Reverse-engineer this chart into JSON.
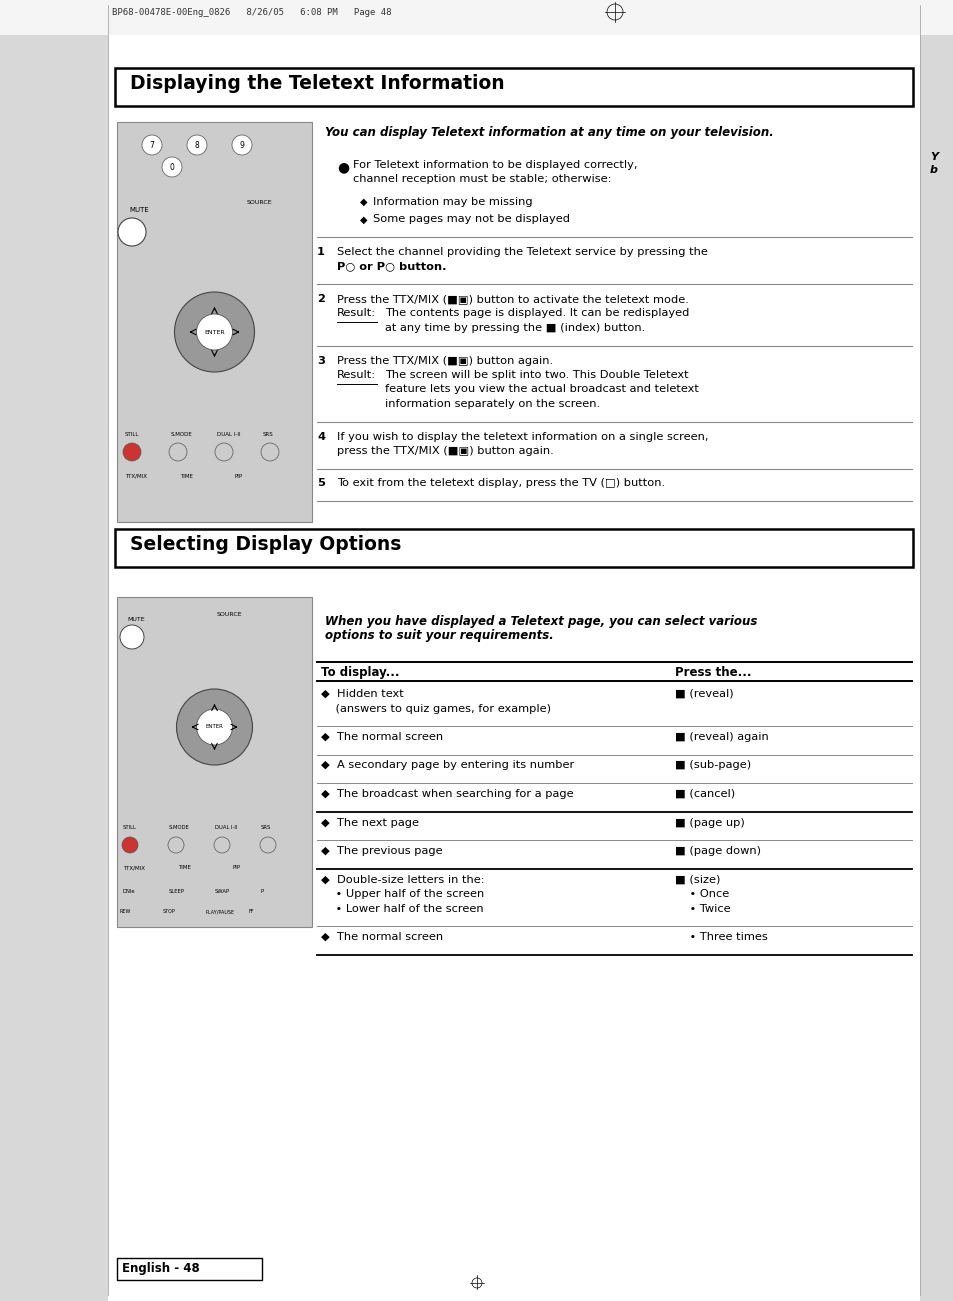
{
  "bg_color": "#ffffff",
  "header_text": "BP68-00478E-00Eng_0826   8/26/05   6:08 PM   Page 48",
  "section1_title": "Displaying the Teletext Information",
  "section2_title": "Selecting Display Options",
  "footer_text": "English - 48",
  "italic_intro1": "You can display Teletext information at any time on your television.",
  "note_line1": "For Teletext information to be displayed correctly,",
  "note_line2": "channel reception must be stable; otherwise:",
  "bullet1": "Information may be missing",
  "bullet2": "Some pages may not be displayed",
  "step1_line1": "Select the channel providing the Teletext service by pressing the",
  "step1_line2": "P○ or P○ button.",
  "step2_line1": "Press the TTX/MIX (■▣) button to activate the teletext mode.",
  "step2_result_label": "Result:",
  "step2_result_line1": "The contents page is displayed. It can be redisplayed",
  "step2_result_line2": "at any time by pressing the ■ (index) button.",
  "step3_line1": "Press the TTX/MIX (■▣) button again.",
  "step3_result_label": "Result:",
  "step3_result_line1": "The screen will be split into two. This Double Teletext",
  "step3_result_line2": "feature lets you view the actual broadcast and teletext",
  "step3_result_line3": "information separately on the screen.",
  "step4_line1": "If you wish to display the teletext information on a single screen,",
  "step4_line2": "press the TTX/MIX (■▣) button again.",
  "step5_line1": "To exit from the teletext display, press the TV (□) button.",
  "italic_intro2_line1": "When you have displayed a Teletext page, you can select various",
  "italic_intro2_line2": "options to suit your requirements.",
  "table_header_left": "To display...",
  "table_header_right": "Press the...",
  "tr1_left1": "◆  Hidden text",
  "tr1_left2": "    (answers to quiz games, for example)",
  "tr1_right": "■ (reveal)",
  "tr2_left": "◆  The normal screen",
  "tr2_right": "■ (reveal) again",
  "tr3_left": "◆  A secondary page by entering its number",
  "tr3_right": "■ (sub-page)",
  "tr4_left": "◆  The broadcast when searching for a page",
  "tr4_right": "■ (cancel)",
  "tr5_left": "◆  The next page",
  "tr5_right": "■ (page up)",
  "tr6_left": "◆  The previous page",
  "tr6_right": "■ (page down)",
  "tr7_left1": "◆  Double-size letters in the:",
  "tr7_left2": "    • Upper half of the screen",
  "tr7_left3": "    • Lower half of the screen",
  "tr7_right1": "■ (size)",
  "tr7_right2": "    • Once",
  "tr7_right3": "    • Twice",
  "tr8_left": "◆  The normal screen",
  "tr8_right": "    • Three times",
  "left_sidebar_color": "#d8d8d8",
  "right_sidebar_color": "#d8d8d8",
  "remote_color": "#cccccc",
  "remote_border": "#888888",
  "title_box_edge": "#000000",
  "sep_color_light": "#aaaaaa",
  "sep_color_dark": "#000000"
}
